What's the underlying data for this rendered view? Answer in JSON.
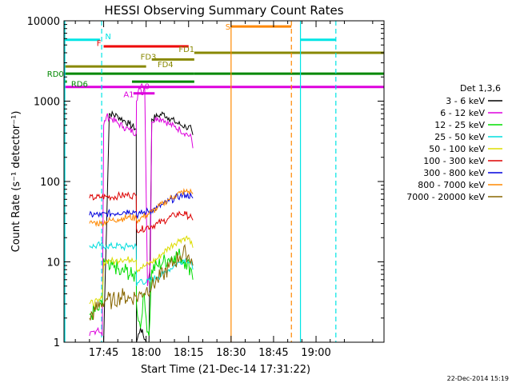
{
  "chart_data": {
    "type": "line",
    "title": "HESSI Observing Summary Count Rates",
    "xlabel": "Start Time (21-Dec-14 17:31:22)",
    "ylabel": "Count Rate (s⁻¹ detector⁻¹)",
    "footer_date": "22-Dec-2014 15:19",
    "y_scale": "log",
    "ylim": [
      1,
      10000
    ],
    "y_ticks": [
      {
        "value": 1,
        "label": "1"
      },
      {
        "value": 10,
        "label": "10"
      },
      {
        "value": 100,
        "label": "100"
      },
      {
        "value": 1000,
        "label": "1000"
      },
      {
        "value": 10000,
        "label": "10000"
      }
    ],
    "x_unit": "minutes",
    "xlim": [
      1051,
      1164
    ],
    "x_ticks": [
      {
        "value": 1065,
        "label": "17:45"
      },
      {
        "value": 1080,
        "label": "18:00"
      },
      {
        "value": 1095,
        "label": "18:15"
      },
      {
        "value": 1110,
        "label": "18:30"
      },
      {
        "value": 1125,
        "label": "18:45"
      },
      {
        "value": 1140,
        "label": "19:00"
      }
    ],
    "legend": {
      "position": "right",
      "header": "Det 1,3,6",
      "entries": [
        {
          "label": "3 - 6 keV",
          "color": "#000000"
        },
        {
          "label": "6 - 12 keV",
          "color": "#dd00dd"
        },
        {
          "label": "12 - 25 keV",
          "color": "#00dd00"
        },
        {
          "label": "25 - 50 keV",
          "color": "#00dddd"
        },
        {
          "label": "50 - 100 keV",
          "color": "#dddd00"
        },
        {
          "label": "100 - 300 keV",
          "color": "#dd0000"
        },
        {
          "label": "300 - 800 keV",
          "color": "#0000dd"
        },
        {
          "label": "800 - 7000 keV",
          "color": "#ff8800"
        },
        {
          "label": "7000 - 20000 keV",
          "color": "#886600"
        }
      ]
    },
    "series": [
      {
        "name": "3 - 6 keV",
        "color": "#000000",
        "x": [
          1065,
          1067,
          1070,
          1072,
          1074,
          1076.5,
          1076.6,
          1078,
          1080,
          1081,
          1082,
          1084,
          1086,
          1088,
          1090,
          1092,
          1094,
          1096,
          1096.5
        ],
        "y": [
          1,
          700,
          650,
          580,
          520,
          450,
          1,
          1.5,
          1,
          1,
          600,
          650,
          700,
          620,
          560,
          510,
          480,
          450,
          380
        ]
      },
      {
        "name": "6 - 12 keV",
        "color": "#dd00dd",
        "x": [
          1060,
          1063,
          1064.5,
          1065,
          1066,
          1068,
          1070,
          1072,
          1074,
          1076.5,
          1076.6,
          1077.5,
          1078.5,
          1079.5,
          1080.5,
          1081.5,
          1082,
          1084,
          1086,
          1088,
          1090,
          1092,
          1094,
          1096,
          1096.5
        ],
        "y": [
          1.2,
          1.5,
          1.2,
          500,
          650,
          600,
          530,
          480,
          440,
          400,
          1000,
          1500,
          1200,
          1500,
          5,
          10,
          550,
          620,
          600,
          520,
          480,
          440,
          400,
          350,
          260
        ]
      },
      {
        "name": "12 - 25 keV",
        "color": "#00dd00",
        "x": [
          1060,
          1063,
          1064.5,
          1065,
          1067,
          1069,
          1071,
          1073,
          1075,
          1076.5,
          1076.6,
          1078,
          1079,
          1080,
          1081,
          1082,
          1084,
          1086,
          1088,
          1090,
          1092,
          1094,
          1096,
          1096.5
        ],
        "y": [
          2.2,
          2.5,
          2.8,
          11,
          8,
          9,
          7,
          8,
          6.5,
          7,
          3,
          1.5,
          4,
          2,
          1.2,
          8,
          9,
          10,
          11,
          12,
          12,
          10,
          8,
          6
        ]
      },
      {
        "name": "25 - 50 keV",
        "color": "#00dddd",
        "x": [
          1060,
          1062,
          1064,
          1065,
          1066,
          1068,
          1070,
          1072,
          1074,
          1076.5,
          1076.6,
          1078,
          1080,
          1082,
          1084,
          1086,
          1088,
          1090,
          1092,
          1094,
          1096,
          1096.5
        ],
        "y": [
          16,
          15.5,
          16.5,
          15,
          16,
          15.5,
          16,
          15,
          16,
          15.5,
          5,
          6,
          5.5,
          6,
          6.5,
          7,
          8,
          9,
          10,
          11,
          10,
          8
        ]
      },
      {
        "name": "50 - 100 keV",
        "color": "#dddd00",
        "x": [
          1060,
          1063,
          1064.5,
          1065,
          1067,
          1069,
          1071,
          1073,
          1075,
          1076.5,
          1076.6,
          1078,
          1080,
          1082,
          1084,
          1086,
          1088,
          1090,
          1092,
          1094,
          1096,
          1096.5
        ],
        "y": [
          3,
          3.2,
          3.5,
          10,
          10.5,
          10,
          11,
          10.5,
          11,
          10.5,
          8,
          8.5,
          9,
          10,
          11,
          13,
          15,
          17,
          19,
          20,
          18,
          15
        ]
      },
      {
        "name": "100 - 300 keV",
        "color": "#dd0000",
        "x": [
          1060,
          1062,
          1064,
          1066,
          1068,
          1070,
          1072,
          1074,
          1076.5,
          1076.6,
          1078,
          1080,
          1082,
          1084,
          1086,
          1088,
          1090,
          1092,
          1094,
          1096,
          1096.5
        ],
        "y": [
          62,
          63,
          64,
          65,
          64,
          66,
          67,
          68,
          66,
          26,
          25,
          27,
          28,
          30,
          32,
          35,
          38,
          40,
          39,
          36,
          33
        ]
      },
      {
        "name": "300 - 800 keV",
        "color": "#0000dd",
        "x": [
          1060,
          1062,
          1064,
          1066,
          1068,
          1070,
          1072,
          1074,
          1076.5,
          1076.6,
          1078,
          1080,
          1082,
          1084,
          1086,
          1088,
          1090,
          1092,
          1094,
          1096,
          1096.5
        ],
        "y": [
          38,
          39,
          38,
          40,
          40,
          41,
          42,
          43,
          42,
          38,
          40,
          42,
          44,
          47,
          52,
          57,
          62,
          66,
          68,
          66,
          62
        ]
      },
      {
        "name": "800 - 7000 keV",
        "color": "#ff8800",
        "x": [
          1060,
          1062,
          1064,
          1066,
          1068,
          1070,
          1072,
          1074,
          1076.5,
          1076.6,
          1078,
          1080,
          1082,
          1084,
          1086,
          1088,
          1090,
          1092,
          1094,
          1096,
          1096.5
        ],
        "y": [
          30,
          31,
          30,
          32,
          33,
          34,
          35,
          36,
          35,
          33,
          35,
          38,
          42,
          47,
          53,
          60,
          66,
          72,
          75,
          74,
          70
        ]
      },
      {
        "name": "7000 - 20000 keV",
        "color": "#886600",
        "x": [
          1060,
          1062,
          1064,
          1066,
          1068,
          1070,
          1072,
          1074,
          1076.5,
          1076.6,
          1078,
          1080,
          1082,
          1084,
          1086,
          1088,
          1090,
          1092,
          1094,
          1096,
          1096.5
        ],
        "y": [
          2,
          2.5,
          3,
          3.5,
          3.2,
          3.6,
          3.8,
          3.5,
          3.8,
          3.5,
          4,
          4.5,
          5,
          6,
          7,
          8.5,
          10,
          12,
          13,
          11,
          9
        ]
      }
    ],
    "flag_bars": [
      {
        "label": "N",
        "color": "#00e5e5",
        "segments": [
          [
            1051,
            1063.7
          ],
          [
            1134.5,
            1147
          ]
        ],
        "y": 5800
      },
      {
        "label": "S",
        "color": "#ff8800",
        "segments": [
          [
            1110,
            1131.3
          ]
        ],
        "y": 8500
      },
      {
        "label": "F",
        "color": "#ee0000",
        "segments": [
          [
            1065,
            1095
          ]
        ],
        "y": 4800
      },
      {
        "label": "FD1",
        "color": "#888800",
        "segments": [
          [
            1097,
            1164
          ]
        ],
        "y": 4000
      },
      {
        "label": "FD3",
        "color": "#888800",
        "segments": [
          [
            1082,
            1097
          ]
        ],
        "y": 3300
      },
      {
        "label": "FD4",
        "color": "#888800",
        "segments": [
          [
            1051,
            1080
          ]
        ],
        "y": 2700
      },
      {
        "label": "RD0",
        "color": "#008800",
        "segments": [
          [
            1051,
            1097
          ],
          [
            1097,
            1164
          ]
        ],
        "y": 2200
      },
      {
        "label": "RD6",
        "color": "#008800",
        "segments": [
          [
            1051,
            1052
          ],
          [
            1075,
            1097
          ]
        ],
        "y": 1750
      },
      {
        "label": "A0",
        "color": "#dd00dd",
        "segments": [
          [
            1051,
            1164
          ]
        ],
        "y": 1500
      },
      {
        "label": "A1",
        "color": "#dd00dd",
        "segments": [
          [
            1075.5,
            1083
          ]
        ],
        "y": 1250
      }
    ],
    "flag_labels": [
      {
        "text": "N",
        "color": "#00e5e5",
        "x": 1065.5,
        "y": 6500
      },
      {
        "text": "S",
        "color": "#ff8800",
        "x": 1108,
        "y": 8500
      },
      {
        "text": "F",
        "color": "#ee0000",
        "x": 1062.5,
        "y": 5300
      },
      {
        "text": "FD1",
        "color": "#888800",
        "x": 1091.5,
        "y": 4500
      },
      {
        "text": "FD3",
        "color": "#888800",
        "x": 1078,
        "y": 3600
      },
      {
        "text": "FD4",
        "color": "#888800",
        "x": 1084,
        "y": 2900
      },
      {
        "text": "RD0",
        "color": "#008800",
        "x": 1045,
        "y": 2200
      },
      {
        "text": "RD6",
        "color": "#008800",
        "x": 1053.5,
        "y": 1650
      },
      {
        "text": "A0",
        "color": "#dd00dd",
        "x": 1077.5,
        "y": 1550
      },
      {
        "text": "A1",
        "color": "#dd00dd",
        "x": 1072,
        "y": 1230
      }
    ],
    "vlines": [
      {
        "x": 1051.3,
        "color": "#00e5e5",
        "style": "solid"
      },
      {
        "x": 1064.3,
        "color": "#00e5e5",
        "style": "dashed"
      },
      {
        "x": 1110,
        "color": "#ff8800",
        "style": "solid"
      },
      {
        "x": 1131.3,
        "color": "#ff8800",
        "style": "dashed"
      },
      {
        "x": 1134.5,
        "color": "#00e5e5",
        "style": "solid"
      },
      {
        "x": 1147,
        "color": "#00e5e5",
        "style": "dashed"
      }
    ]
  }
}
